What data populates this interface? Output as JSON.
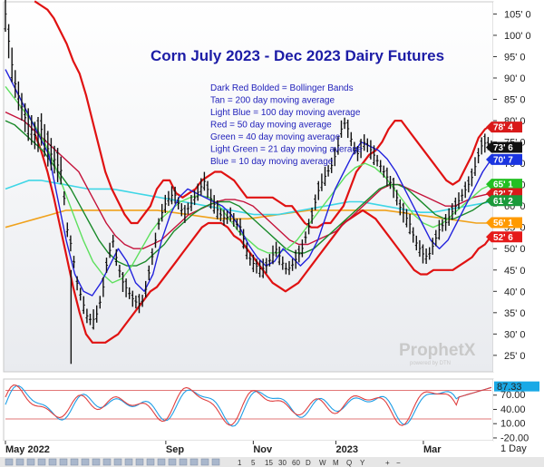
{
  "chart_data": {
    "type": "candlestick",
    "title": "Corn July 2023 - Dec 2023 Dairy Futures",
    "legend_notes": [
      "Dark Red Bolded = Bollinger Bands",
      "Tan = 200 day moving average",
      "Light Blue = 100 day moving average",
      "Red = 50 day moving average",
      "Green = 40 day moving average",
      "Light Green = 21 day moving average",
      "Blue = 10 day moving average"
    ],
    "y_ticks": [
      "105' 0",
      "100' 0",
      "95' 0",
      "90' 0",
      "85' 0",
      "80' 0",
      "75' 0",
      "70' 0",
      "65' 0",
      "60' 0",
      "55' 0",
      "50' 0",
      "45' 0",
      "40' 0",
      "35' 0",
      "30' 0",
      "25' 0"
    ],
    "ylim": [
      22,
      107
    ],
    "x_ticks": [
      "May 2022",
      "Sep",
      "Nov",
      "2023",
      "Mar"
    ],
    "x_tick_pos": [
      0,
      0.33,
      0.51,
      0.68,
      0.86
    ],
    "price_tags": [
      {
        "label": "78' 4",
        "value": 78.5,
        "color": "#d91a1a"
      },
      {
        "label": "73' 6",
        "value": 73.75,
        "color": "#111111"
      },
      {
        "label": "70' 7",
        "value": 70.9,
        "color": "#1b35e0"
      },
      {
        "label": "65' 1",
        "value": 65.1,
        "color": "#22c022"
      },
      {
        "label": "62' 7",
        "value": 62.9,
        "color": "#d91a1a"
      },
      {
        "label": "61' 2",
        "value": 61.25,
        "color": "#1a9a3a"
      },
      {
        "label": "56' 1",
        "value": 56.1,
        "color": "#ff9a00"
      },
      {
        "label": "52' 6",
        "value": 52.75,
        "color": "#e51a1a"
      }
    ],
    "close_series": [
      105,
      95,
      88,
      84,
      80,
      78,
      76,
      78,
      74,
      72,
      70,
      68,
      55,
      50,
      42,
      38,
      34,
      33,
      35,
      40,
      48,
      52,
      46,
      42,
      40,
      38,
      37,
      38,
      44,
      50,
      56,
      60,
      62,
      63,
      60,
      58,
      60,
      62,
      64,
      66,
      62,
      60,
      58,
      57,
      58,
      56,
      55,
      50,
      47,
      46,
      45,
      46,
      48,
      50,
      47,
      45,
      46,
      48,
      50,
      54,
      58,
      63,
      66,
      68,
      70,
      74,
      80,
      78,
      74,
      72,
      75,
      74,
      72,
      70,
      68,
      66,
      64,
      60,
      58,
      56,
      52,
      50,
      48,
      49,
      52,
      55,
      56,
      58,
      60,
      62,
      64,
      66,
      70,
      74,
      75,
      74
    ],
    "bollinger_upper": [
      108,
      107,
      106,
      104,
      101,
      98,
      94,
      91,
      86,
      80,
      74,
      68,
      64,
      61,
      58,
      56,
      56,
      58,
      60,
      64,
      66,
      66,
      63,
      62,
      63,
      64,
      66,
      67,
      68,
      68,
      67,
      66,
      64,
      62,
      62,
      62,
      62,
      62,
      61,
      60,
      60,
      58,
      56,
      55,
      55,
      56,
      56,
      58,
      60,
      64,
      68,
      70,
      72,
      73,
      75,
      78,
      80,
      80,
      78,
      76,
      74,
      72,
      70,
      68,
      66,
      65,
      66,
      69,
      72,
      76,
      78,
      79
    ],
    "bollinger_lower": [
      77,
      73,
      68,
      62,
      55,
      48,
      41,
      35,
      30,
      28,
      28,
      28,
      29,
      30,
      32,
      34,
      36,
      38,
      40,
      41,
      43,
      45,
      47,
      49,
      51,
      53,
      55,
      56,
      56,
      56,
      55,
      53,
      52,
      50,
      48,
      46,
      44,
      42,
      41,
      40,
      41,
      42,
      44,
      46,
      48,
      50,
      52,
      54,
      56,
      57,
      58,
      59,
      58,
      57,
      55,
      53,
      51,
      49,
      47,
      45,
      44,
      44,
      45,
      45,
      45,
      45,
      46,
      47,
      48,
      50,
      51,
      53
    ],
    "ma_200": [
      55,
      56,
      57,
      58,
      59,
      59,
      59,
      59,
      59,
      59,
      59,
      58.5,
      58,
      57.5,
      57,
      57,
      57,
      57.5,
      58,
      58.5,
      59,
      59,
      59,
      59,
      59,
      59,
      58.5,
      58,
      57.5,
      57,
      56.5,
      56,
      56
    ],
    "ma_100": [
      64,
      65,
      66,
      66,
      65.5,
      65,
      64.5,
      64,
      64,
      64,
      63.5,
      63,
      62.5,
      62,
      61.5,
      61,
      60.5,
      60,
      59.5,
      59,
      58.5,
      58,
      58,
      58,
      58.5,
      59,
      59.5,
      60,
      60.5,
      61,
      61,
      60.5,
      60,
      59.5,
      59,
      58.5,
      58.5,
      59,
      59.5,
      60,
      60.5,
      61
    ],
    "ma_50": [
      82,
      81,
      80,
      78,
      76,
      74,
      72,
      70,
      68,
      64,
      60,
      56,
      53,
      51,
      50,
      50,
      51,
      52,
      54,
      56,
      58,
      59,
      60,
      61,
      61.5,
      61.5,
      61,
      60,
      58,
      56,
      54,
      52,
      51,
      51,
      52,
      53,
      54,
      56,
      58,
      60,
      62,
      64,
      65,
      65,
      64,
      63,
      62,
      61,
      60,
      60,
      61,
      62,
      62.5,
      63
    ],
    "ma_40": [
      80,
      79,
      77,
      75,
      73,
      70,
      67,
      64,
      60,
      56,
      52,
      49,
      47,
      46,
      46,
      47,
      49,
      51,
      54,
      56,
      58,
      59.5,
      60.5,
      61,
      61,
      60,
      58,
      56,
      54,
      52,
      50,
      49,
      49,
      50,
      52,
      54,
      56,
      58,
      60,
      62,
      64,
      65,
      65,
      64,
      62,
      60,
      58,
      57,
      57,
      58,
      59,
      60.5,
      61.5
    ],
    "ma_21": [
      88,
      85,
      82,
      79,
      75,
      70,
      64,
      58,
      52,
      47,
      44,
      42,
      43,
      46,
      50,
      54,
      57,
      59,
      61,
      62,
      62.5,
      62,
      60,
      57,
      54,
      52,
      50,
      49,
      49,
      50,
      52,
      55,
      58,
      61,
      64,
      67,
      69,
      70,
      69,
      67,
      64,
      61,
      58,
      56,
      55,
      56,
      58,
      60,
      62,
      64,
      65
    ],
    "ma_10": [
      92,
      88,
      84,
      80,
      76,
      72,
      62,
      52,
      44,
      40,
      39,
      42,
      46,
      50,
      47,
      42,
      40,
      44,
      52,
      58,
      62,
      64,
      63,
      62,
      61,
      60,
      58,
      55,
      51,
      48,
      46,
      47,
      50,
      48,
      46,
      48,
      52,
      58,
      64,
      68,
      72,
      75,
      74,
      73,
      71,
      68,
      64,
      60,
      56,
      52,
      50,
      52,
      56,
      60,
      64,
      68,
      71
    ],
    "oscillator": {
      "y_ticks": [
        "87.33",
        "70.00",
        "40.00",
        "10.00",
        "-20.00"
      ],
      "ylim": [
        -22,
        100
      ],
      "levels": [
        80,
        20
      ],
      "readout": "87.33"
    },
    "period": "1 Day",
    "toolbar_items": [
      "1",
      "5",
      "15",
      "30",
      "60",
      "D",
      "W",
      "M",
      "Q",
      "Y"
    ]
  }
}
